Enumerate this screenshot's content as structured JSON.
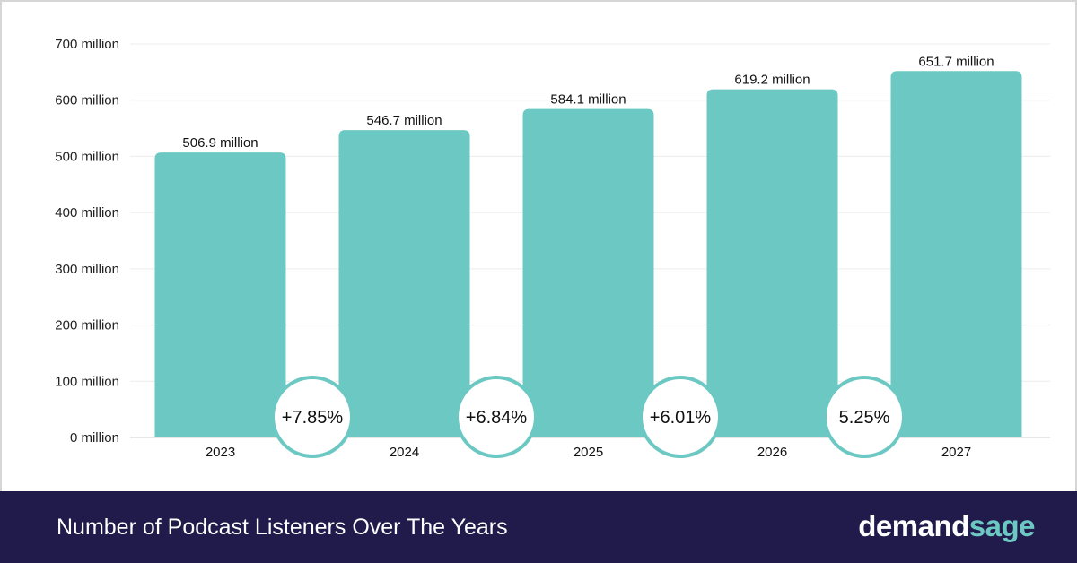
{
  "chart_data": {
    "type": "bar",
    "categories": [
      "2023",
      "2024",
      "2025",
      "2026",
      "2027"
    ],
    "values": [
      506.9,
      546.7,
      584.1,
      619.2,
      651.7
    ],
    "data_labels": [
      "506.9 million",
      "546.7 million",
      "584.1 million",
      "619.2 million",
      "651.7 million"
    ],
    "ylim": [
      0,
      700
    ],
    "yticks": [
      0,
      100,
      200,
      300,
      400,
      500,
      600,
      700
    ],
    "ytick_labels": [
      "0 million",
      "100 million",
      "200 million",
      "300 million",
      "400 million",
      "500 million",
      "600 million",
      "700 million"
    ],
    "growth_labels": [
      "+7.85%",
      "+6.84%",
      "+6.01%",
      "5.25%"
    ],
    "grid": true,
    "bar_color": "#6cc8c2",
    "title": "",
    "xlabel": "",
    "ylabel": ""
  },
  "footer": {
    "title": "Number of Podcast Listeners Over The Years",
    "brand_part1": "demand",
    "brand_part2": "sage"
  },
  "colors": {
    "bar": "#6cc8c2",
    "footer_bg": "#211b4b",
    "brand_accent": "#6cc8c2"
  }
}
